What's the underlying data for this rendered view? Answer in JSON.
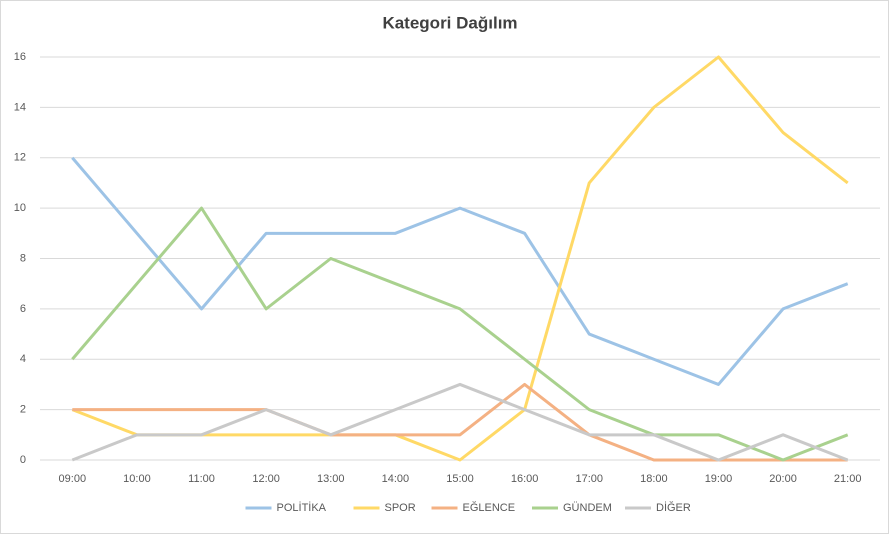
{
  "chart_data": {
    "type": "line",
    "title": "Kategori Dağılım",
    "categories": [
      "09:00",
      "10:00",
      "11:00",
      "12:00",
      "13:00",
      "14:00",
      "15:00",
      "16:00",
      "17:00",
      "18:00",
      "19:00",
      "20:00",
      "21:00"
    ],
    "series": [
      {
        "name": "POLİTİKA",
        "color": "#9dc3e6",
        "values": [
          12,
          9,
          6,
          9,
          9,
          9,
          10,
          9,
          5,
          4,
          3,
          6,
          7
        ]
      },
      {
        "name": "SPOR",
        "color": "#ffd966",
        "values": [
          2,
          1,
          1,
          1,
          1,
          1,
          0,
          2,
          11,
          14,
          16,
          13,
          11
        ]
      },
      {
        "name": "EĞLENCE",
        "color": "#f4b183",
        "values": [
          2,
          2,
          2,
          2,
          1,
          1,
          1,
          3,
          1,
          0,
          0,
          0,
          0
        ]
      },
      {
        "name": "GÜNDEM",
        "color": "#a9d18e",
        "values": [
          4,
          7,
          10,
          6,
          8,
          7,
          6,
          4,
          2,
          1,
          1,
          0,
          1
        ]
      },
      {
        "name": "DİĞER",
        "color": "#c9c9c9",
        "values": [
          0,
          1,
          1,
          2,
          1,
          2,
          3,
          2,
          1,
          1,
          0,
          1,
          0
        ]
      }
    ],
    "ylim": [
      0,
      16
    ],
    "yticks": [
      0,
      2,
      4,
      6,
      8,
      10,
      12,
      14,
      16
    ],
    "grid": true,
    "legend": "bottom"
  }
}
